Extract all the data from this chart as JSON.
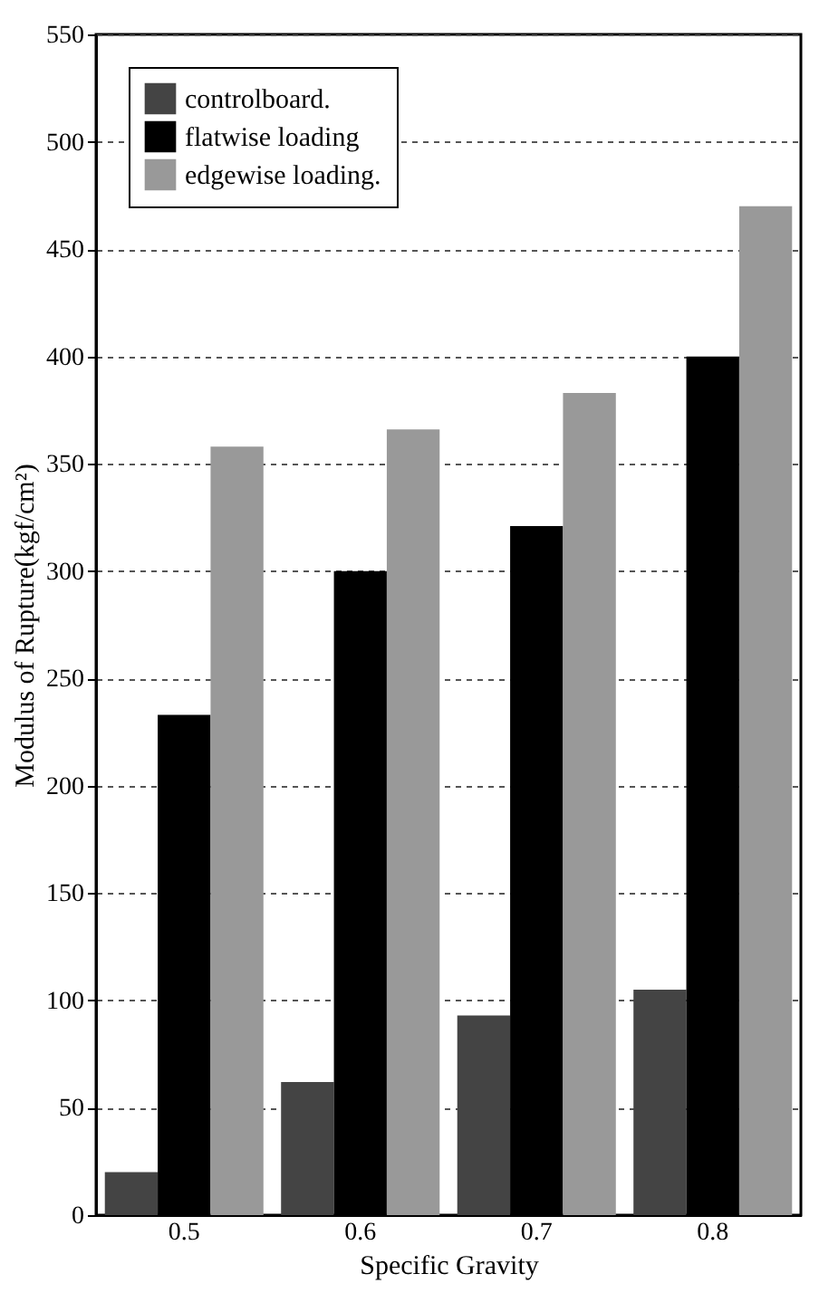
{
  "chart_data": {
    "type": "bar",
    "xlabel": "Specific Gravity",
    "ylabel": "Modulus of Rupture(kgf/cm²)",
    "categories": [
      "0.5",
      "0.6",
      "0.7",
      "0.8"
    ],
    "series": [
      {
        "name": "controlboard.",
        "color": "#444444",
        "values": [
          20,
          62,
          93,
          105
        ]
      },
      {
        "name": "flatwise loading",
        "color": "#000000",
        "values": [
          233,
          300,
          321,
          400
        ]
      },
      {
        "name": "edgewise loading.",
        "color": "#999999",
        "values": [
          358,
          366,
          383,
          470
        ]
      }
    ],
    "ylim": [
      0,
      550
    ],
    "yticks": [
      0,
      50,
      100,
      150,
      200,
      250,
      300,
      350,
      400,
      450,
      500,
      550
    ],
    "grid": "y",
    "legend": "top left"
  }
}
